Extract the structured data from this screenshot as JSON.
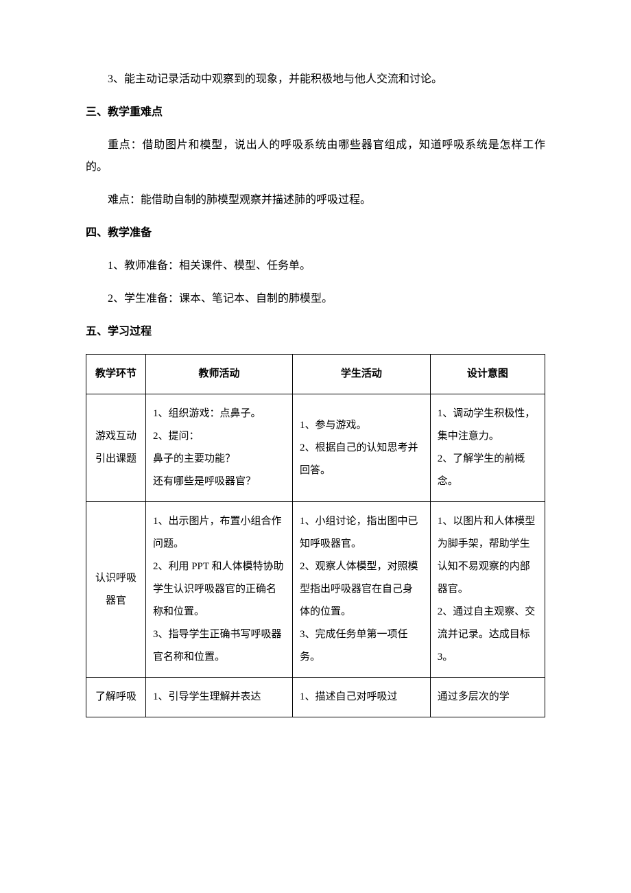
{
  "paragraphs": {
    "p1": "3、能主动记录活动中观察到的现象，并能积极地与他人交流和讨论。",
    "h1": "三、教学重难点",
    "p2": "重点：借助图片和模型，说出人的呼吸系统由哪些器官组成，知道呼吸系统是怎样工作的。",
    "p3": "难点：能借助自制的肺模型观察并描述肺的呼吸过程。",
    "h2": "四、教学准备",
    "p4": "1、教师准备：相关课件、模型、任务单。",
    "p5": "2、学生准备：课本、笔记本、自制的肺模型。",
    "h3": "五、学习过程"
  },
  "table": {
    "headers": {
      "c1": "教学环节",
      "c2": "教师活动",
      "c3": "学生活动",
      "c4": "设计意图"
    },
    "rows": [
      {
        "stage": "游戏互动\n引出课题",
        "teacher": "1、组织游戏：点鼻子。\n2、提问：\n鼻子的主要功能？\n还有哪些是呼吸器官？",
        "student": "1、参与游戏。\n2、根据自己的认知思考并回答。",
        "intent": "1、调动学生积极性，集中注意力。\n2、了解学生的前概念。"
      },
      {
        "stage": "认识呼吸\n器官",
        "teacher": "1、出示图片，布置小组合作问题。\n2、利用 PPT 和人体模特协助学生认识呼吸器官的正确名称和位置。\n3、指导学生正确书写呼吸器官名称和位置。",
        "student": "1、小组讨论，指出图中已知呼吸器官。\n2、观察人体模型，对照模型指出呼吸器官在自己身体的位置。\n3、完成任务单第一项任务。",
        "intent": "1、以图片和人体模型为脚手架，帮助学生认知不易观察的内部器官。\n2、通过自主观察、交流并记录。达成目标 3。"
      },
      {
        "stage": "了解呼吸",
        "teacher": "1、引导学生理解并表达",
        "student": "1、描述自己对呼吸过",
        "intent": "通过多层次的学"
      }
    ]
  },
  "colors": {
    "text": "#000000",
    "background": "#ffffff",
    "border": "#000000"
  },
  "typography": {
    "body_fontsize": 16,
    "table_fontsize": 15,
    "line_height": 2,
    "font_family": "SimSun"
  }
}
